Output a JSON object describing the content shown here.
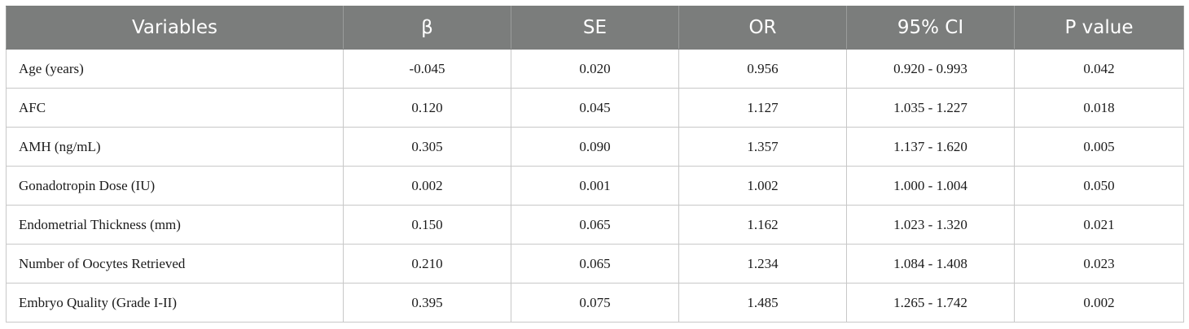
{
  "table": {
    "headers": [
      "Variables",
      "β",
      "SE",
      "OR",
      "95% CI",
      "P value"
    ],
    "rows": [
      [
        "Age (years)",
        "-0.045",
        "0.020",
        "0.956",
        "0.920 - 0.993",
        "0.042"
      ],
      [
        "AFC",
        "0.120",
        "0.045",
        "1.127",
        "1.035 - 1.227",
        "0.018"
      ],
      [
        "AMH (ng/mL)",
        "0.305",
        "0.090",
        "1.357",
        "1.137 - 1.620",
        "0.005"
      ],
      [
        "Gonadotropin Dose (IU)",
        "0.002",
        "0.001",
        "1.002",
        "1.000 - 1.004",
        "0.050"
      ],
      [
        "Endometrial Thickness (mm)",
        "0.150",
        "0.065",
        "1.162",
        "1.023 - 1.320",
        "0.021"
      ],
      [
        "Number of Oocytes Retrieved",
        "0.210",
        "0.065",
        "1.234",
        "1.084 - 1.408",
        "0.023"
      ],
      [
        "Embryo Quality (Grade I-II)",
        "0.395",
        "0.075",
        "1.485",
        "1.265 - 1.742",
        "0.002"
      ]
    ]
  },
  "colors": {
    "header_background": "#7b7d7c",
    "header_text": "#ffffff",
    "grid_lines": "#c8c8c8"
  }
}
